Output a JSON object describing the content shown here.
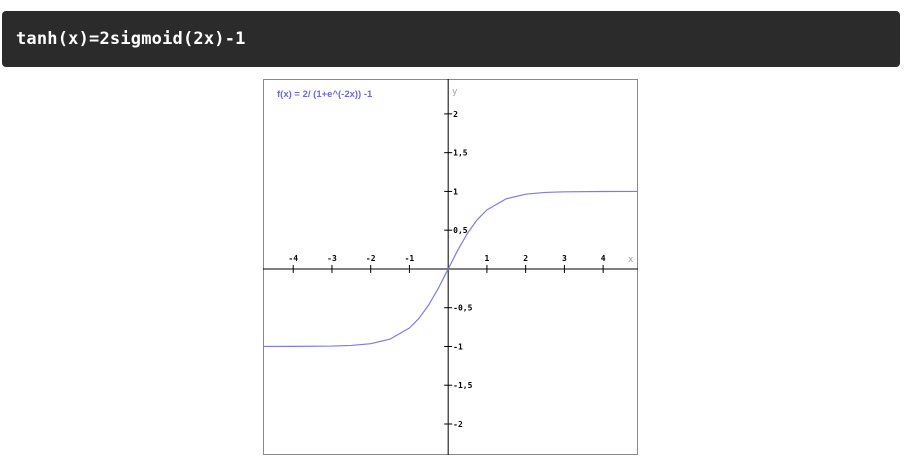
{
  "header": {
    "code": "tanh(x)=2sigmoid(2x)-1"
  },
  "chart_data": {
    "type": "line",
    "title": "f(x) = 2/ (1+e^(-2x)) -1",
    "xlabel": "x",
    "ylabel": "y",
    "xlim": [
      -4.78,
      4.9
    ],
    "ylim": [
      -2.4,
      2.45
    ],
    "x_ticks": [
      -4,
      -3,
      -2,
      -1,
      1,
      2,
      3,
      4
    ],
    "x_tick_labels": [
      "-4",
      "-3",
      "-2",
      "-1",
      "1",
      "2",
      "3",
      "4"
    ],
    "y_ticks": [
      2,
      1.5,
      1,
      0.5,
      -0.5,
      -1,
      -1.5,
      -2
    ],
    "y_tick_labels": [
      "2",
      "1,5",
      "1",
      "0,5",
      "-0,5",
      "-1",
      "-1,5",
      "-2"
    ],
    "grid": false,
    "series": [
      {
        "name": "",
        "function": "2/(1+e^(-2x))-1",
        "x": [
          -4.78,
          -4,
          -3,
          -2.5,
          -2,
          -1.5,
          -1,
          -0.75,
          -0.5,
          -0.25,
          0,
          0.25,
          0.5,
          0.75,
          1,
          1.5,
          2,
          2.5,
          3,
          4,
          4.9
        ],
        "y": [
          -1.0,
          -0.999,
          -0.995,
          -0.987,
          -0.964,
          -0.905,
          -0.762,
          -0.635,
          -0.462,
          -0.245,
          0.0,
          0.245,
          0.462,
          0.635,
          0.762,
          0.905,
          0.964,
          0.987,
          0.995,
          0.999,
          1.0
        ]
      }
    ],
    "colors": {
      "curve": "#7b7bea",
      "title": "#6a6ae0",
      "axis": "#000000",
      "frame": "#8a8a8a",
      "axis_name": "#a0a0a0",
      "banner_bg": "#2b2b2b",
      "banner_text": "#ffffff"
    }
  }
}
